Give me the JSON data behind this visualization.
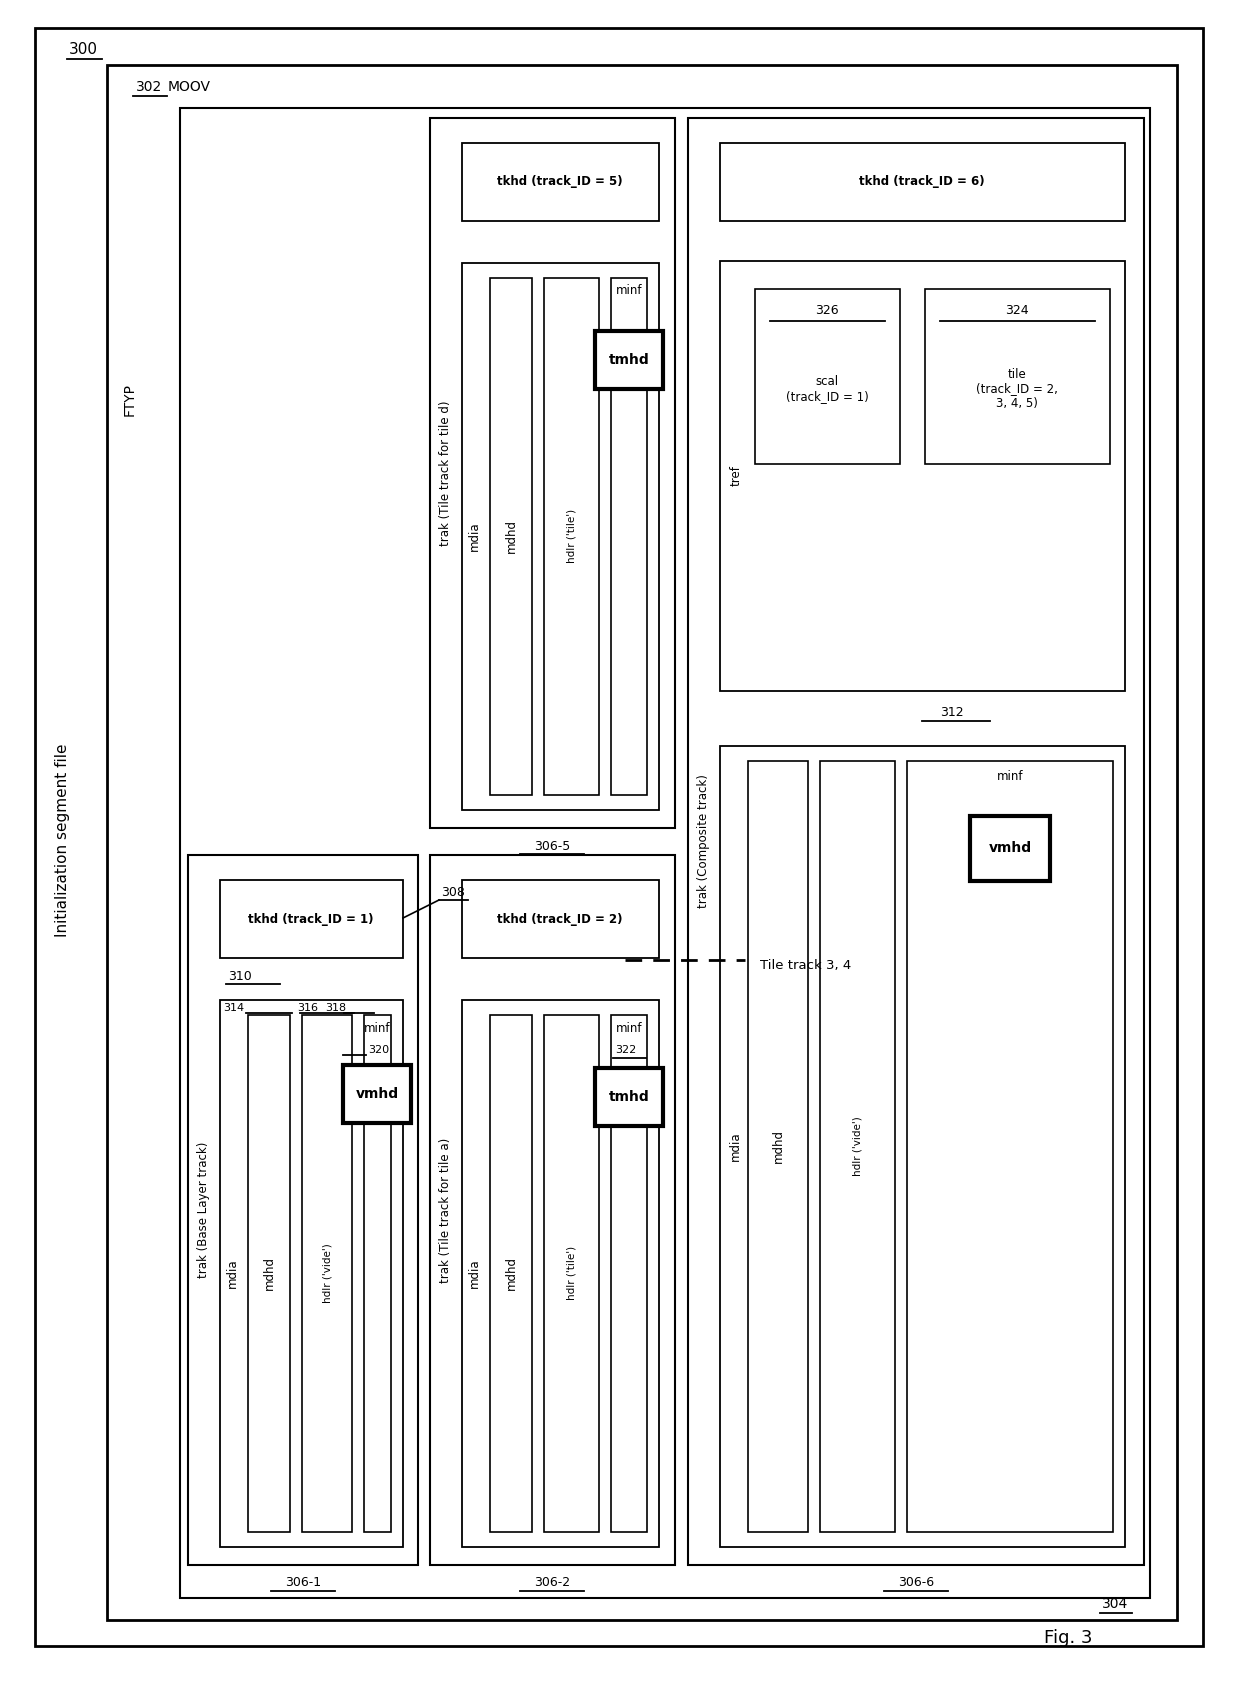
{
  "bg_color": "#ffffff",
  "fig_label": "Fig. 3",
  "outer_num": "300",
  "moov_num": "302",
  "ftyp_text": "FTYP",
  "moov_text": "MOOV",
  "inner_num": "304",
  "init_seg_text": "Initialization segment file",
  "tile_track_text": "Tile track 3, 4",
  "tracks": {
    "t1": {
      "id": "306-1",
      "title": "trak (Base Layer track)",
      "tkhd_text": "tkhd (track_ID = 1)",
      "tkhd_num": "308",
      "tkhd_sub": "310",
      "mdia_text": "mdia",
      "items": [
        {
          "text": "mdhd",
          "num": "314"
        },
        {
          "text": "hdlr ('vide')",
          "num": "316"
        },
        {
          "text": "minf",
          "num": "318"
        }
      ],
      "special": "vmhd",
      "special_num": "320"
    },
    "t2": {
      "id": "306-2",
      "title": "trak (Tile track for tile a)",
      "tkhd_text": "tkhd (track_ID = 2)",
      "mdia_text": "mdia",
      "items": [
        {
          "text": "mdhd",
          "num": ""
        },
        {
          "text": "hdlr ('tile')",
          "num": ""
        },
        {
          "text": "minf",
          "num": "322"
        }
      ],
      "special": "tmhd",
      "special_num": ""
    },
    "t5": {
      "id": "306-5",
      "title": "trak (Tile track for tile d)",
      "tkhd_text": "tkhd (track_ID = 5)",
      "mdia_text": "mdia",
      "items": [
        {
          "text": "mdhd",
          "num": ""
        },
        {
          "text": "hdlr ('tile')",
          "num": ""
        },
        {
          "text": "minf",
          "num": ""
        }
      ],
      "special": "tmhd",
      "special_num": ""
    },
    "t6": {
      "id": "306-6",
      "title": "trak (Composite track)",
      "tkhd_text": "tkhd (track_ID = 6)",
      "tref_text": "tref",
      "scal_num": "326",
      "scal_text": "scal\n(track_ID = 1)",
      "tile_num": "324",
      "tile_text": "tile\n(track_ID = 2,\n3, 4, 5)",
      "tref_id": "312",
      "mdia_text": "mdia",
      "items": [
        {
          "text": "mdhd",
          "num": ""
        },
        {
          "text": "hdlr ('vide')",
          "num": ""
        },
        {
          "text": "minf",
          "num": ""
        }
      ],
      "special": "vmhd",
      "special_num": ""
    }
  }
}
